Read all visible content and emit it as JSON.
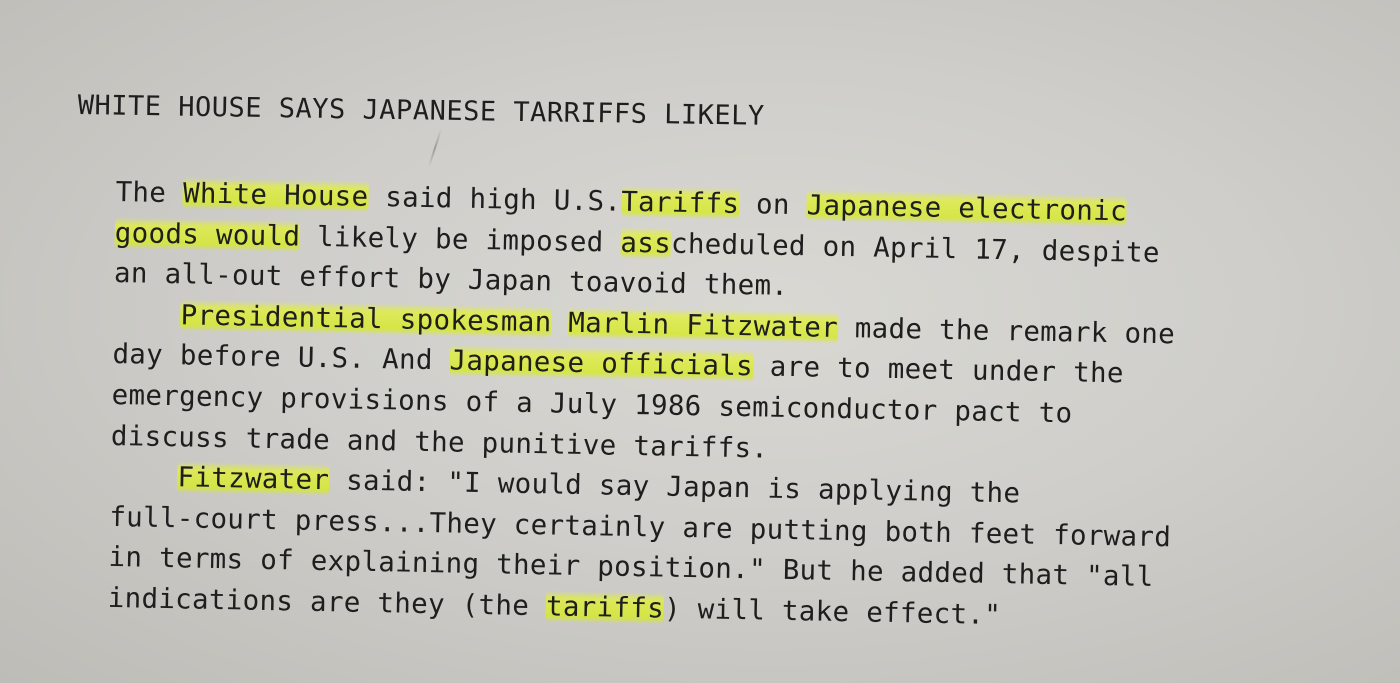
{
  "document": {
    "headline": "WHITE HOUSE SAYS JAPANESE TARRIFFS LIKELY",
    "lines": [
      [
        {
          "t": "The "
        },
        {
          "t": "White House",
          "hl": true
        },
        {
          "t": " said high U.S."
        },
        {
          "t": "Tariffs",
          "hl": true
        },
        {
          "t": " on "
        },
        {
          "t": "Japanese electronic",
          "hl": true
        }
      ],
      [
        {
          "t": "goods would",
          "hl": true
        },
        {
          "t": " likely be imposed "
        },
        {
          "t": "ass",
          "hl": true
        },
        {
          "t": "cheduled on April 17, despite"
        }
      ],
      [
        {
          "t": "an all-out effort by Japan toavoid them."
        }
      ],
      [
        {
          "t": "    "
        },
        {
          "t": "Presidential spokesman",
          "hl": true
        },
        {
          "t": " "
        },
        {
          "t": "Marlin Fitzwater",
          "hl": true
        },
        {
          "t": " made the remark one"
        }
      ],
      [
        {
          "t": "day before U.S. And "
        },
        {
          "t": "Japanese officials",
          "hl": true
        },
        {
          "t": " are to meet under the"
        }
      ],
      [
        {
          "t": "emergency provisions of a July 1986 semiconductor pact to"
        }
      ],
      [
        {
          "t": "discuss trade and the punitive tariffs."
        }
      ],
      [
        {
          "t": "    "
        },
        {
          "t": "Fitzwater",
          "hl": true
        },
        {
          "t": " said: \"I would say Japan is applying the"
        }
      ],
      [
        {
          "t": "full-court press...They certainly are putting both feet forward"
        }
      ],
      [
        {
          "t": "in terms of explaining their position.\" But he added that \"all"
        }
      ],
      [
        {
          "t": "indications are they (the "
        },
        {
          "t": "tariffs",
          "hl": true
        },
        {
          "t": ") will take effect.\""
        }
      ]
    ]
  }
}
